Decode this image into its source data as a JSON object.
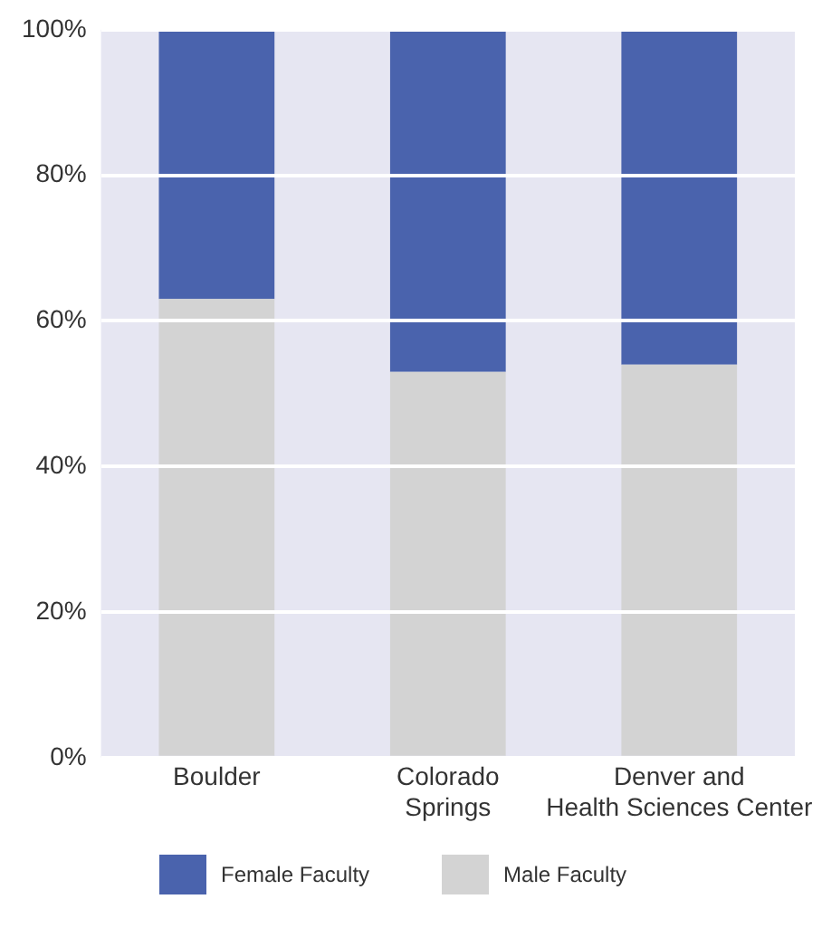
{
  "chart_data": {
    "type": "bar",
    "stacked": true,
    "categories": [
      "Boulder",
      "Colorado\nSprings",
      "Denver and\nHealth Sciences Center"
    ],
    "series": [
      {
        "name": "Male Faculty",
        "color": "#d3d3d3",
        "values": [
          63,
          53,
          54
        ]
      },
      {
        "name": "Female Faculty",
        "color": "#4a63ad",
        "values": [
          37,
          47,
          46
        ]
      }
    ],
    "ylim": [
      0,
      100
    ],
    "yticks": [
      {
        "value": 0,
        "label": "0%"
      },
      {
        "value": 20,
        "label": "20%"
      },
      {
        "value": 40,
        "label": "40%"
      },
      {
        "value": 60,
        "label": "60%"
      },
      {
        "value": 80,
        "label": "80%"
      },
      {
        "value": 100,
        "label": "100%"
      }
    ],
    "grid": "y",
    "legend": "bottom"
  }
}
